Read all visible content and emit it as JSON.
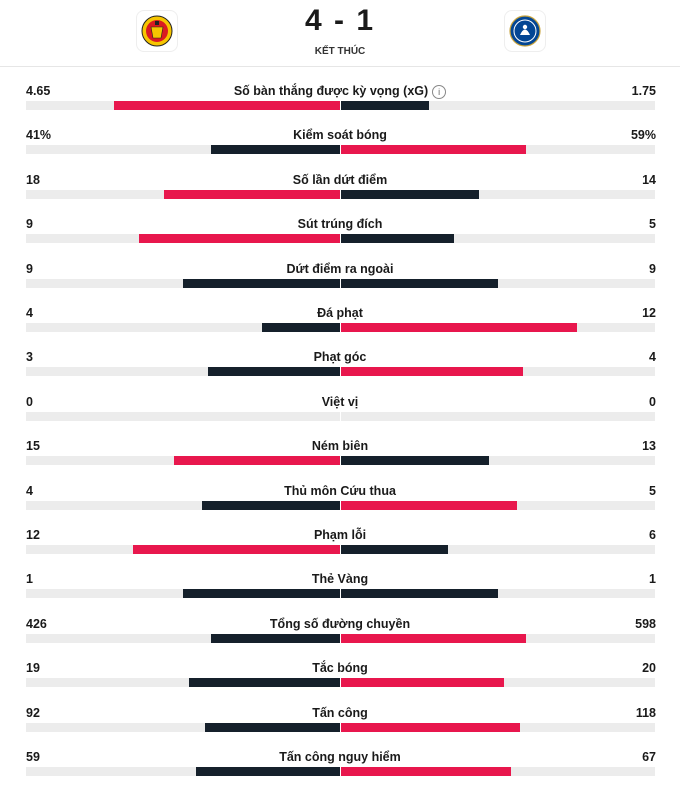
{
  "match": {
    "score": "4 - 1",
    "status": "KẾT THÚC",
    "home_crest": "manchester-united-crest",
    "away_crest": "chelsea-crest"
  },
  "colors": {
    "winner": "#e8174d",
    "loser": "#15202b",
    "track": "#ececec"
  },
  "stats": [
    {
      "label": "Số bàn thắng được kỳ vọng (xG)",
      "home": "4.65",
      "away": "1.75",
      "home_frac": 0.72,
      "away_frac": 0.28,
      "info": "i"
    },
    {
      "label": "Kiểm soát bóng",
      "home": "41%",
      "away": "59%",
      "home_frac": 0.41,
      "away_frac": 0.59
    },
    {
      "label": "Số lần dứt điểm",
      "home": "18",
      "away": "14",
      "home_frac": 0.56,
      "away_frac": 0.44
    },
    {
      "label": "Sút trúng đích",
      "home": "9",
      "away": "5",
      "home_frac": 0.64,
      "away_frac": 0.36
    },
    {
      "label": "Dứt điểm ra ngoài",
      "home": "9",
      "away": "9",
      "home_frac": 0.5,
      "away_frac": 0.5
    },
    {
      "label": "Đá phạt",
      "home": "4",
      "away": "12",
      "home_frac": 0.25,
      "away_frac": 0.75
    },
    {
      "label": "Phạt góc",
      "home": "3",
      "away": "4",
      "home_frac": 0.42,
      "away_frac": 0.58
    },
    {
      "label": "Việt vị",
      "home": "0",
      "away": "0",
      "home_frac": 0,
      "away_frac": 0
    },
    {
      "label": "Ném biên",
      "home": "15",
      "away": "13",
      "home_frac": 0.53,
      "away_frac": 0.47
    },
    {
      "label": "Thủ môn Cứu thua",
      "home": "4",
      "away": "5",
      "home_frac": 0.44,
      "away_frac": 0.56
    },
    {
      "label": "Phạm lỗi",
      "home": "12",
      "away": "6",
      "home_frac": 0.66,
      "away_frac": 0.34
    },
    {
      "label": "Thẻ Vàng",
      "home": "1",
      "away": "1",
      "home_frac": 0.5,
      "away_frac": 0.5
    },
    {
      "label": "Tổng số đường chuyền",
      "home": "426",
      "away": "598",
      "home_frac": 0.41,
      "away_frac": 0.59
    },
    {
      "label": "Tắc bóng",
      "home": "19",
      "away": "20",
      "home_frac": 0.48,
      "away_frac": 0.52
    },
    {
      "label": "Tấn công",
      "home": "92",
      "away": "118",
      "home_frac": 0.43,
      "away_frac": 0.57
    },
    {
      "label": "Tấn công nguy hiểm",
      "home": "59",
      "away": "67",
      "home_frac": 0.46,
      "away_frac": 0.54
    }
  ]
}
